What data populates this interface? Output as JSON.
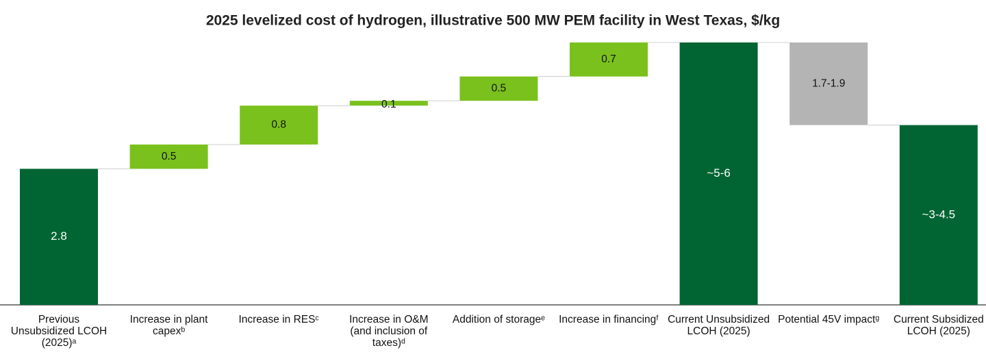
{
  "chart_data": {
    "type": "waterfall",
    "title": "2025 levelized cost of hydrogen, illustrative 500 MW PEM facility in West Texas, $/kg",
    "categories": [
      "Previous Unsubsidized LCOH (2025)ᵃ",
      "Increase in plant capexᵇ",
      "Increase in RESᶜ",
      "Increase in O&M (and inclusion of taxes)ᵈ",
      "Addition of storageᵉ",
      "Increase in financingᶠ",
      "Current Unsubsidized LCOH (2025)",
      "Potential 45V impactᵍ",
      "Current Subsidized LCOH (2025)"
    ],
    "values": [
      2.8,
      0.5,
      0.8,
      0.1,
      0.5,
      0.7,
      5.4,
      -1.7,
      3.7
    ],
    "value_labels": [
      "2.8",
      "0.5",
      "0.8",
      "0.1",
      "0.5",
      "0.7",
      "~5-6",
      "1.7-1.9",
      "~3-4.5"
    ],
    "measures": [
      "total",
      "relative",
      "relative",
      "relative",
      "relative",
      "relative",
      "total",
      "relative",
      "total"
    ],
    "total_color": "#006532",
    "increase_color": "#7ac11d",
    "decrease_color": "#b4b4b4"
  }
}
